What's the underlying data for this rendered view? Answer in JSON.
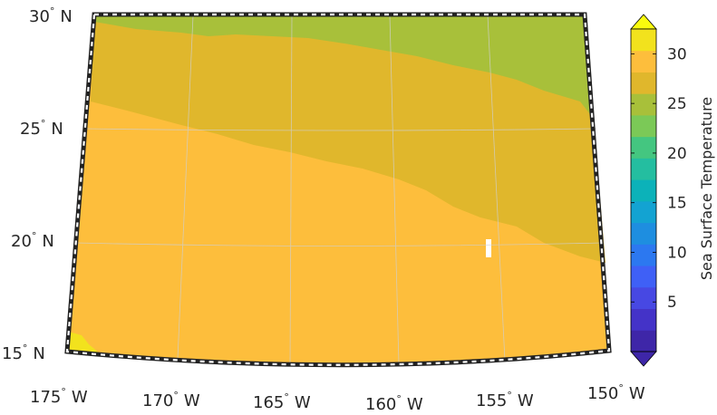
{
  "map": {
    "projection": "conic",
    "lat_range": [
      15,
      30
    ],
    "lon_range": [
      -175,
      -150
    ],
    "lat_labels": [
      {
        "value": 30,
        "deg": "30",
        "hem": "N"
      },
      {
        "value": 25,
        "deg": "25",
        "hem": "N"
      },
      {
        "value": 20,
        "deg": "20",
        "hem": "N"
      },
      {
        "value": 15,
        "deg": "15",
        "hem": "N"
      }
    ],
    "lon_labels": [
      {
        "value": -175,
        "deg": "175",
        "hem": "W"
      },
      {
        "value": -170,
        "deg": "170",
        "hem": "W"
      },
      {
        "value": -165,
        "deg": "165",
        "hem": "W"
      },
      {
        "value": -160,
        "deg": "160",
        "hem": "W"
      },
      {
        "value": -155,
        "deg": "155",
        "hem": "W"
      },
      {
        "value": -150,
        "deg": "150",
        "hem": "W"
      }
    ],
    "gridlines": true,
    "frame_style": "black-white dashed",
    "missing_data_cell": {
      "lon": -155.8,
      "lat": 20.2
    }
  },
  "field": {
    "variable": "Sea Surface Temperature",
    "bands": [
      {
        "range": "30+",
        "color": "#f2e21d"
      },
      {
        "range": "25-27.5",
        "color": "#fdbe3c"
      },
      {
        "range": "22.5-25",
        "color": "#e0b72c"
      },
      {
        "range": "20-22.5",
        "color": "#a8c03a"
      }
    ]
  },
  "colorbar": {
    "title": "Sea Surface Temperature",
    "ticks": [
      "30",
      "25",
      "20",
      "15",
      "10",
      "5"
    ],
    "tick_values": [
      30,
      25,
      20,
      15,
      10,
      5
    ],
    "range": [
      0,
      32.5
    ],
    "colors": [
      "#3e26a8",
      "#4433c8",
      "#4748e3",
      "#3f60f6",
      "#2c78f0",
      "#1e8ee0",
      "#13a3d2",
      "#0cb2b9",
      "#24bea0",
      "#44c680",
      "#7bc957",
      "#a8c03a",
      "#e0b72c",
      "#fdbe3c",
      "#f2e21d"
    ],
    "extend_low": "#3e26a8",
    "extend_high": "#f9fb0e"
  }
}
